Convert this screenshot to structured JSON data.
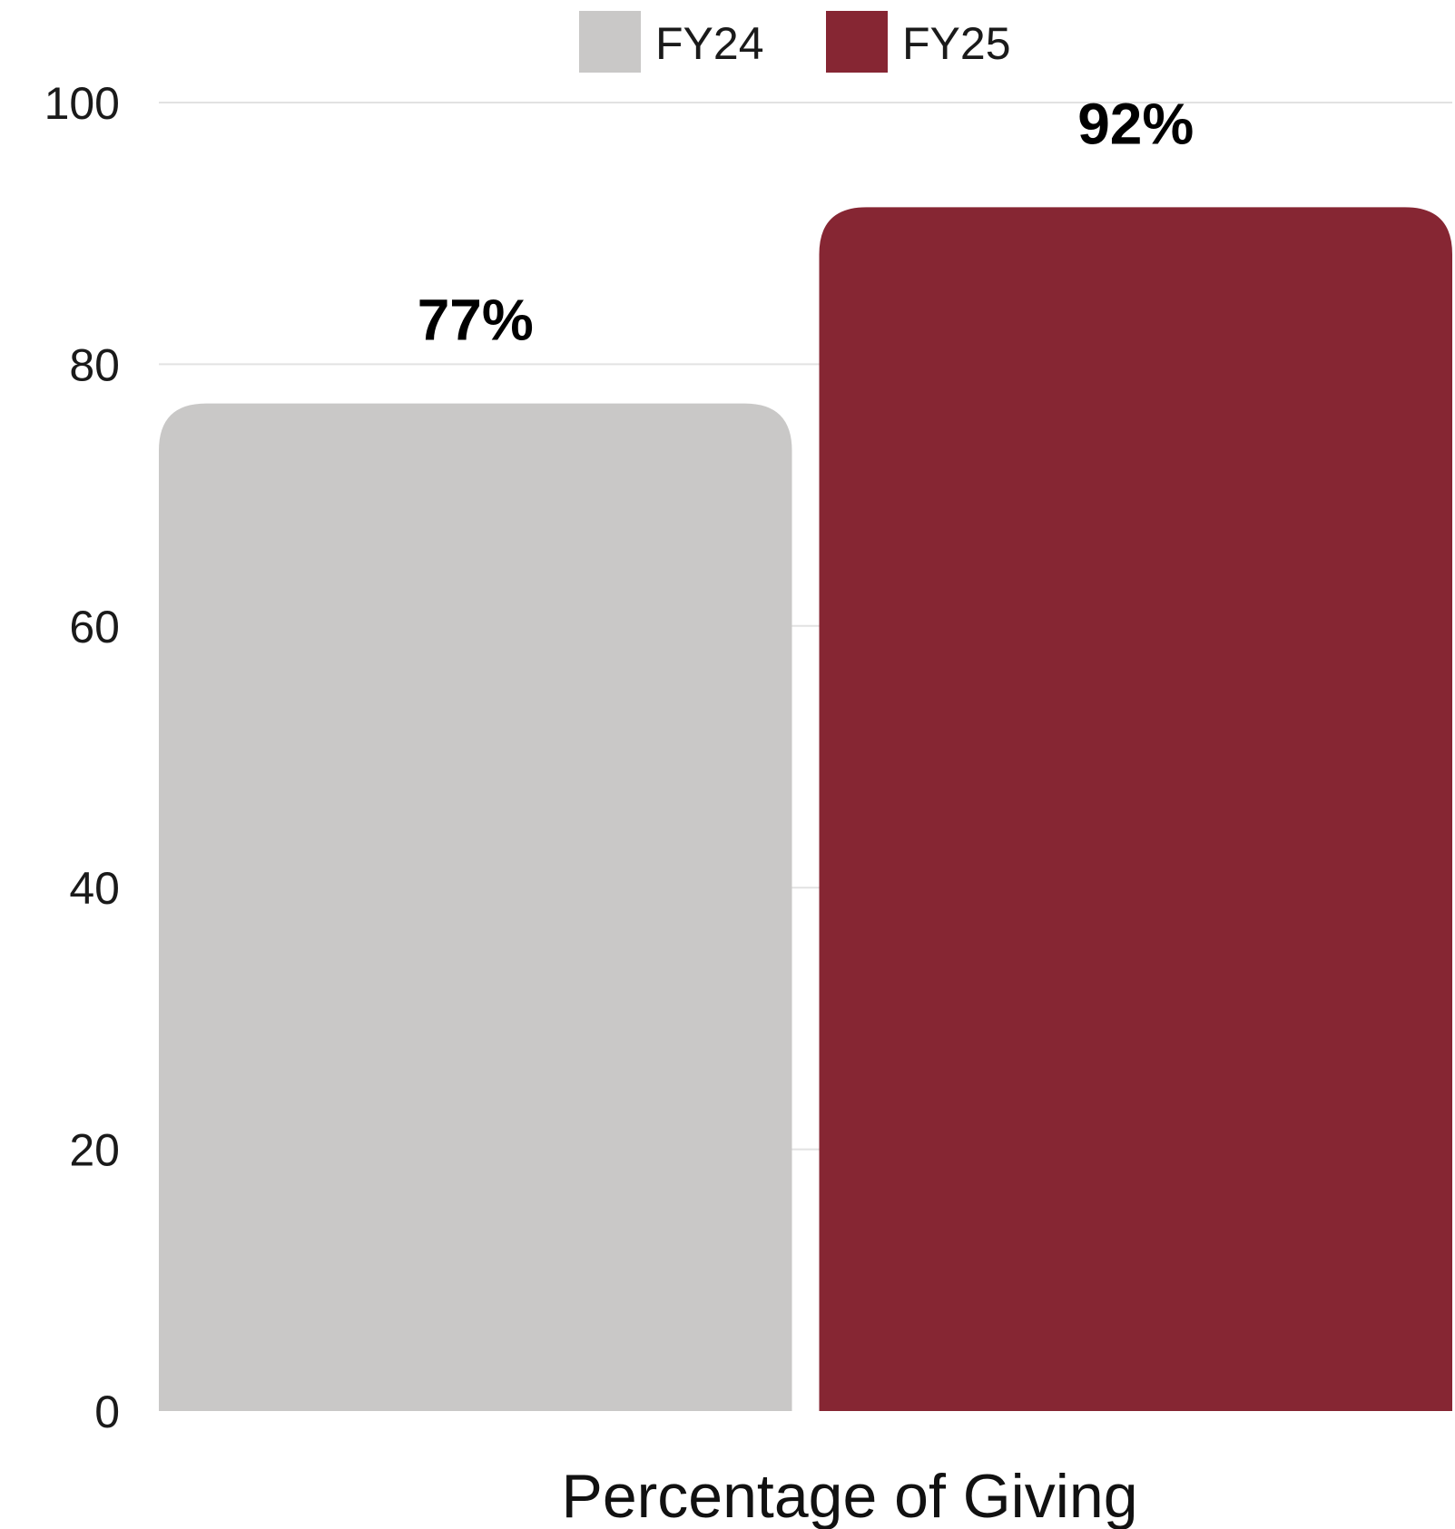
{
  "chart_data": {
    "type": "bar",
    "categories": [
      "Percentage of Giving"
    ],
    "series": [
      {
        "name": "FY24",
        "values": [
          77
        ],
        "value_label": "77%",
        "color": "#c9c8c7"
      },
      {
        "name": "FY25",
        "values": [
          92
        ],
        "value_label": "92%",
        "color": "#862633"
      }
    ],
    "y_ticks": [
      "0",
      "20",
      "40",
      "60",
      "80",
      "100"
    ],
    "ylim": [
      0,
      100
    ],
    "grid": true,
    "legend": "top-center"
  }
}
